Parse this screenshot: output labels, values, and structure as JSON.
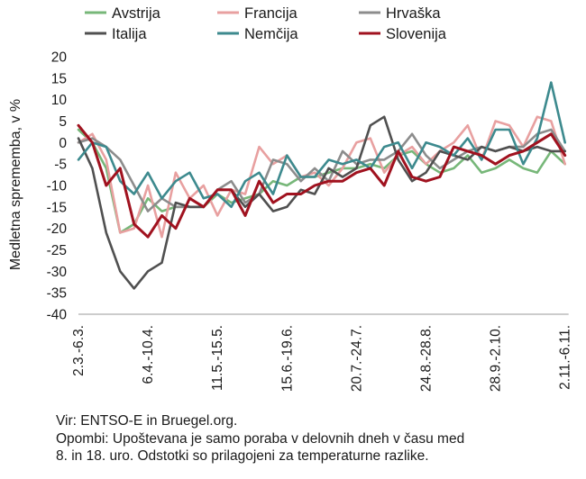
{
  "chart_data": {
    "type": "line",
    "ylabel": "Medletna sprememba, v %",
    "xlabel": "",
    "ylim": [
      -40,
      20
    ],
    "yticks": [
      20,
      15,
      10,
      5,
      0,
      -5,
      -10,
      -15,
      -20,
      -25,
      -30,
      -35,
      -40
    ],
    "xticks": [
      "2.3.-6.3.",
      "6.4.-10.4.",
      "11.5.-15.5.",
      "15.6.-19.6.",
      "20.7.-24.7.",
      "24.8.-28.8.",
      "28.9.-2.10.",
      "2.11.-6.11."
    ],
    "xtick_week_index": [
      0,
      5,
      10,
      15,
      20,
      25,
      30,
      35
    ],
    "grid": false,
    "legend_position": "top",
    "series": [
      {
        "name": "Avstrija",
        "color": "#77b779",
        "values": [
          3,
          0,
          -6,
          -21,
          -19,
          -13,
          -16,
          -15,
          -15,
          -15,
          -12,
          -14,
          -13,
          -12,
          -9,
          -10,
          -8,
          -8,
          -7,
          -6,
          -6,
          -5,
          -6,
          -3,
          -2,
          -5,
          -7,
          -6,
          -3,
          -7,
          -6,
          -4,
          -6,
          -7,
          -2,
          -5
        ]
      },
      {
        "name": "Francija",
        "color": "#e8a0a0",
        "values": [
          0,
          2,
          -4,
          -21,
          -20,
          -10,
          -22,
          -7,
          -13,
          -10,
          -17,
          -11,
          -12,
          -1,
          -5,
          -3,
          -8,
          -7,
          -10,
          -6,
          0,
          1,
          -7,
          -3,
          -1,
          -5,
          -2,
          0,
          4,
          -4,
          5,
          4,
          -1,
          6,
          5,
          -5
        ]
      },
      {
        "name": "Hrvaška",
        "color": "#8c8c8c",
        "values": [
          0,
          1,
          -1,
          -4,
          -10,
          -16,
          -13,
          -15,
          -15,
          -15,
          -11,
          -9,
          -14,
          -12,
          -4,
          -5,
          -9,
          -6,
          -9,
          -2,
          -5,
          -4,
          -4,
          -2,
          2,
          -3,
          -6,
          -4,
          -2,
          -1,
          -2,
          -1,
          -1,
          2,
          3,
          -2
        ]
      },
      {
        "name": "Italija",
        "color": "#505050",
        "values": [
          1,
          -6,
          -21,
          -30,
          -34,
          -30,
          -28,
          -14,
          -15,
          -15,
          -11,
          -11,
          -15,
          -12,
          -16,
          -15,
          -11,
          -12,
          -6,
          -8,
          -6,
          4,
          6,
          -4,
          -9,
          -7,
          -2,
          -3,
          -4,
          -1,
          -2,
          -1,
          -2,
          -1,
          -2,
          -2
        ]
      },
      {
        "name": "Nemčija",
        "color": "#3d8a8e",
        "values": [
          -4,
          0,
          -1,
          -9,
          -12,
          -7,
          -13,
          -9,
          -7,
          -13,
          -12,
          -15,
          -9,
          -7,
          -12,
          -3,
          -8,
          -8,
          -4,
          -5,
          -4,
          -6,
          -1,
          0,
          -6,
          0,
          -1,
          -3,
          1,
          -4,
          3,
          3,
          -5,
          1,
          14,
          0
        ]
      },
      {
        "name": "Slovenija",
        "color": "#a0121f",
        "values": [
          4,
          0,
          -10,
          -6,
          -19,
          -22,
          -17,
          -20,
          -13,
          -15,
          -11,
          -11,
          -17,
          -9,
          -14,
          -12,
          -12,
          -10,
          -9,
          -9,
          -7,
          -6,
          -10,
          -2,
          -8,
          -9,
          -8,
          -1,
          -2,
          -3,
          -5,
          -3,
          -2,
          0,
          2,
          -3
        ]
      }
    ]
  },
  "notes": {
    "source": "Vir: ENTSO-E in Bruegel.org.",
    "remarks_line1": "Opombi: Upoštevana je samo poraba v delovnih dneh v času med",
    "remarks_line2": "8. in 18. uro. Odstotki so prilagojeni za temperaturne razlike."
  }
}
